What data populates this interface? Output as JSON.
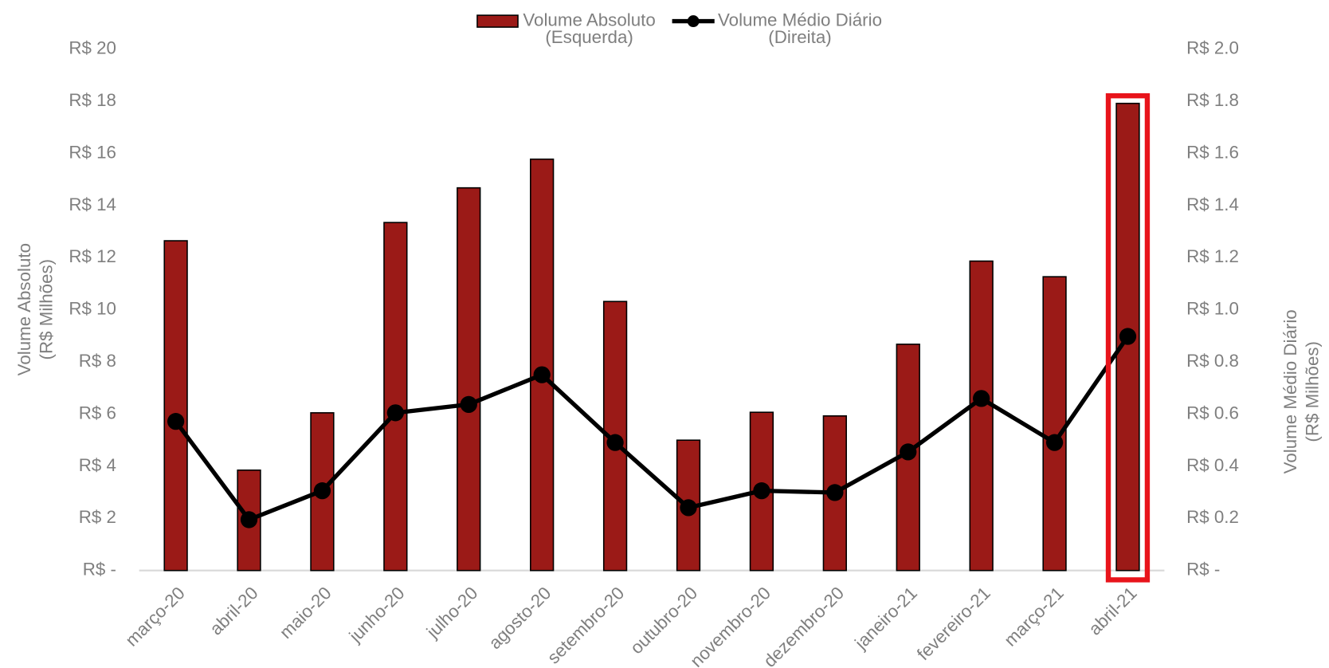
{
  "chart_data": {
    "type": "bar_line",
    "categories": [
      "março-20",
      "abril-20",
      "maio-20",
      "junho-20",
      "julho-20",
      "agosto-20",
      "setembro-20",
      "outubro-20",
      "novembro-20",
      "dezembro-20",
      "janeiro-21",
      "fevereiro-21",
      "março-21",
      "abril-21"
    ],
    "series": [
      {
        "name": "Volume Absoluto",
        "legend_note": "(Esquerda)",
        "type": "bar",
        "color": "#9b1a17",
        "axis": "y",
        "values": [
          12.65,
          3.85,
          6.05,
          13.35,
          14.68,
          15.78,
          10.32,
          5.0,
          6.07,
          5.93,
          8.68,
          11.87,
          11.27,
          17.92
        ]
      },
      {
        "name": "Volume Médio Diário",
        "legend_note": "(Direita)",
        "type": "line",
        "color": "#000000",
        "axis": "y2",
        "values": [
          0.572,
          0.195,
          0.306,
          0.605,
          0.637,
          0.751,
          0.491,
          0.241,
          0.306,
          0.299,
          0.455,
          0.66,
          0.491,
          0.898
        ]
      }
    ],
    "y_label": [
      "Volume Absoluto",
      "(R$ Milhões)"
    ],
    "y2_label": [
      "Volume Médio Diário",
      "(R$ Milhões)"
    ],
    "ylim": [
      0,
      20
    ],
    "yticks": [
      {
        "value": 0,
        "label": "R$ -"
      },
      {
        "value": 2,
        "label": "R$ 2"
      },
      {
        "value": 4,
        "label": "R$ 4"
      },
      {
        "value": 6,
        "label": "R$ 6"
      },
      {
        "value": 8,
        "label": "R$ 8"
      },
      {
        "value": 10,
        "label": "R$ 10"
      },
      {
        "value": 12,
        "label": "R$ 12"
      },
      {
        "value": 14,
        "label": "R$ 14"
      },
      {
        "value": 16,
        "label": "R$ 16"
      },
      {
        "value": 18,
        "label": "R$ 18"
      },
      {
        "value": 20,
        "label": "R$ 20"
      }
    ],
    "y2lim": [
      0,
      2
    ],
    "y2ticks": [
      {
        "value": 0,
        "label": "R$ -"
      },
      {
        "value": 0.2,
        "label": "R$ 0.2"
      },
      {
        "value": 0.4,
        "label": "R$ 0.4"
      },
      {
        "value": 0.6,
        "label": "R$ 0.6"
      },
      {
        "value": 0.8,
        "label": "R$ 0.8"
      },
      {
        "value": 1.0,
        "label": "R$ 1.0"
      },
      {
        "value": 1.2,
        "label": "R$ 1.2"
      },
      {
        "value": 1.4,
        "label": "R$ 1.4"
      },
      {
        "value": 1.6,
        "label": "R$ 1.6"
      },
      {
        "value": 1.8,
        "label": "R$ 1.8"
      },
      {
        "value": 2.0,
        "label": "R$ 2.0"
      }
    ],
    "grid": false,
    "legend": "top",
    "highlight_color": "#e8141b"
  }
}
